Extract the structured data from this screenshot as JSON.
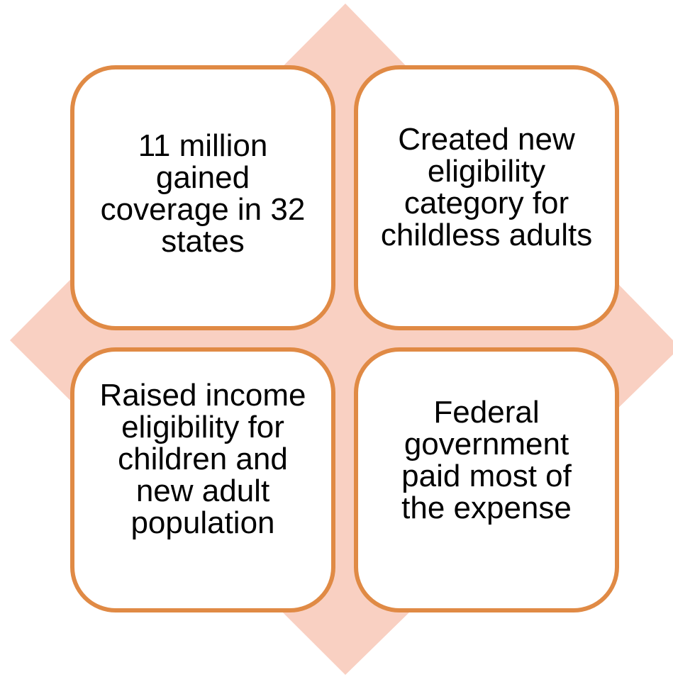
{
  "colors": {
    "background_diamond": "#f9d0c2",
    "box_border": "#e08a45",
    "box_fill": "#ffffff",
    "text": "#000000"
  },
  "boxes": [
    {
      "position": "top-left",
      "text": "11 million gained coverage in 32 states"
    },
    {
      "position": "top-right",
      "text": "Created new eligibility category for childless adults"
    },
    {
      "position": "bottom-left",
      "text": "Raised income eligibility for children and new adult population"
    },
    {
      "position": "bottom-right",
      "text": "Federal government paid most of the expense"
    }
  ]
}
